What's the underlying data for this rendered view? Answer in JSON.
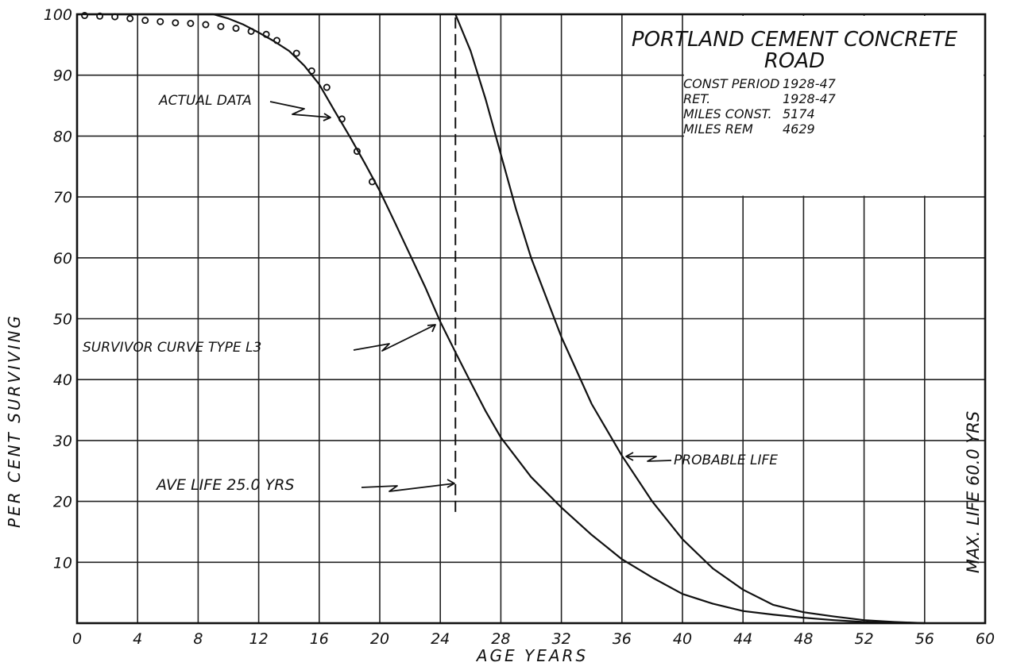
{
  "chart_data": {
    "type": "line",
    "title": "PORTLAND CEMENT CONCRETE",
    "title_line2": "ROAD",
    "info": [
      {
        "label": "CONST PERIOD",
        "value": "1928-47"
      },
      {
        "label": "RET.",
        "value": "1928-47"
      },
      {
        "label": "MILES CONST.",
        "value": "5174"
      },
      {
        "label": "MILES REM",
        "value": "4629"
      }
    ],
    "xlabel": "AGE YEARS",
    "ylabel": "PER CENT  SURVIVING",
    "xlim": [
      0,
      60
    ],
    "ylim": [
      0,
      100
    ],
    "x_ticks": [
      "0",
      "4",
      "8",
      "12",
      "16",
      "20",
      "24",
      "28",
      "32",
      "36",
      "40",
      "44",
      "48",
      "52",
      "56",
      "60"
    ],
    "y_ticks": [
      "10",
      "20",
      "30",
      "40",
      "50",
      "60",
      "70",
      "80",
      "90",
      "100"
    ],
    "grid": true,
    "series": [
      {
        "name": "ACTUAL DATA",
        "style": "circles",
        "x": [
          0.5,
          1.5,
          2.5,
          3.5,
          4.5,
          5.5,
          6.5,
          7.5,
          8.5,
          9.5,
          10.5,
          11.5,
          12.5,
          13.2,
          14.5,
          15.5,
          16.5,
          17.5,
          18.5,
          19.5
        ],
        "y": [
          99.8,
          99.7,
          99.6,
          99.3,
          99.0,
          98.8,
          98.6,
          98.5,
          98.3,
          98.0,
          97.7,
          97.2,
          96.7,
          95.7,
          93.6,
          90.7,
          88.0,
          82.8,
          77.5,
          72.5
        ]
      },
      {
        "name": "SURVIVOR CURVE TYPE L3",
        "style": "line",
        "x": [
          0,
          2,
          4,
          6,
          8,
          9,
          10,
          11,
          12,
          13,
          14,
          15,
          16,
          17,
          18,
          19,
          20,
          21,
          22,
          23,
          24,
          25,
          26,
          27,
          28,
          30,
          32,
          34,
          36,
          38,
          40,
          42,
          44,
          46,
          48,
          50,
          52,
          54,
          56
        ],
        "y": [
          100,
          100,
          100,
          100,
          100,
          100,
          99.3,
          98.3,
          97,
          95.6,
          94,
          91.6,
          88.5,
          84.2,
          80,
          75.6,
          71,
          65.8,
          60.5,
          55.2,
          49.5,
          44.5,
          39.6,
          34.8,
          30.5,
          24,
          19,
          14.5,
          10.5,
          7.5,
          4.8,
          3.2,
          2,
          1.4,
          0.9,
          0.5,
          0.2,
          0.05,
          0
        ]
      },
      {
        "name": "PROBABLE LIFE",
        "style": "line",
        "x": [
          25,
          26,
          27,
          28,
          29,
          30,
          32,
          34,
          36,
          38,
          40,
          42,
          44,
          46,
          48,
          50,
          52,
          54,
          56
        ],
        "y": [
          100,
          94,
          86,
          77,
          68,
          60,
          47,
          36,
          27.5,
          20,
          13.8,
          9,
          5.5,
          3,
          1.8,
          1.1,
          0.5,
          0.2,
          0
        ]
      }
    ],
    "annotations": [
      {
        "text": "ACTUAL DATA"
      },
      {
        "text": "SURVIVOR CURVE TYPE L3"
      },
      {
        "text": "AVE LIFE  25.0 YRS"
      },
      {
        "text": "PROBABLE LIFE"
      },
      {
        "text": "MAX. LIFE  60.0 YRS"
      }
    ],
    "average_life_x": 25,
    "max_life_x": 60
  }
}
